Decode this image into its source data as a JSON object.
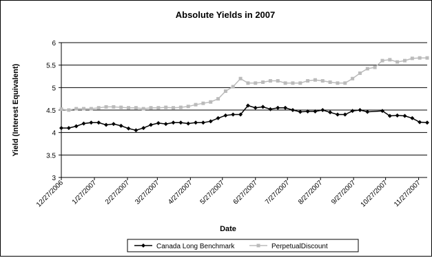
{
  "chart_data": {
    "type": "line",
    "title": "Absolute Yields in 2007",
    "xlabel": "Date",
    "ylabel": "Yield (Interest Equivalent)",
    "ylim": [
      3,
      6
    ],
    "yticks": [
      3,
      3.5,
      4,
      4.5,
      5,
      5.5,
      6
    ],
    "ytick_labels": [
      "3",
      "3.5",
      "4",
      "4.5",
      "5",
      "5.5",
      "6"
    ],
    "xlim": [
      "2006-12-27",
      "2007-12-05"
    ],
    "xtick_labels": [
      "12/27/2006",
      "1/27/2007",
      "2/27/2007",
      "3/27/2007",
      "4/27/2007",
      "5/27/2007",
      "6/27/2007",
      "7/27/2007",
      "8/27/2007",
      "9/27/2007",
      "10/27/2007",
      "11/27/2007"
    ],
    "xtick_dates": [
      "2006-12-27",
      "2007-01-27",
      "2007-02-27",
      "2007-03-27",
      "2007-04-27",
      "2007-05-27",
      "2007-06-27",
      "2007-07-27",
      "2007-08-27",
      "2007-09-27",
      "2007-10-27",
      "2007-11-27"
    ],
    "grid": "horizontal",
    "legend": "bottom",
    "series": [
      {
        "name": "Canada Long Benchmark",
        "color": "#000000",
        "marker": "diamond",
        "points": [
          [
            "2006-12-27",
            4.1
          ],
          [
            "2007-01-03",
            4.1
          ],
          [
            "2007-01-10",
            4.14
          ],
          [
            "2007-01-17",
            4.2
          ],
          [
            "2007-01-24",
            4.22
          ],
          [
            "2007-01-31",
            4.22
          ],
          [
            "2007-02-07",
            4.17
          ],
          [
            "2007-02-14",
            4.19
          ],
          [
            "2007-02-21",
            4.15
          ],
          [
            "2007-02-28",
            4.09
          ],
          [
            "2007-03-07",
            4.05
          ],
          [
            "2007-03-14",
            4.1
          ],
          [
            "2007-03-21",
            4.17
          ],
          [
            "2007-03-28",
            4.21
          ],
          [
            "2007-04-04",
            4.19
          ],
          [
            "2007-04-11",
            4.22
          ],
          [
            "2007-04-18",
            4.22
          ],
          [
            "2007-04-25",
            4.2
          ],
          [
            "2007-05-02",
            4.22
          ],
          [
            "2007-05-09",
            4.22
          ],
          [
            "2007-05-16",
            4.25
          ],
          [
            "2007-05-23",
            4.32
          ],
          [
            "2007-05-30",
            4.38
          ],
          [
            "2007-06-06",
            4.4
          ],
          [
            "2007-06-13",
            4.4
          ],
          [
            "2007-06-20",
            4.6
          ],
          [
            "2007-06-27",
            4.55
          ],
          [
            "2007-07-04",
            4.57
          ],
          [
            "2007-07-11",
            4.52
          ],
          [
            "2007-07-18",
            4.55
          ],
          [
            "2007-07-25",
            4.55
          ],
          [
            "2007-08-01",
            4.5
          ],
          [
            "2007-08-08",
            4.46
          ],
          [
            "2007-08-15",
            4.47
          ],
          [
            "2007-08-22",
            4.47
          ],
          [
            "2007-08-29",
            4.5
          ],
          [
            "2007-09-05",
            4.45
          ],
          [
            "2007-09-12",
            4.4
          ],
          [
            "2007-09-19",
            4.4
          ],
          [
            "2007-09-26",
            4.48
          ],
          [
            "2007-10-03",
            4.5
          ],
          [
            "2007-10-10",
            4.46
          ],
          [
            "2007-10-24",
            4.48
          ],
          [
            "2007-10-31",
            4.37
          ],
          [
            "2007-11-07",
            4.38
          ],
          [
            "2007-11-14",
            4.37
          ],
          [
            "2007-11-21",
            4.32
          ],
          [
            "2007-11-28",
            4.23
          ],
          [
            "2007-12-05",
            4.22
          ]
        ]
      },
      {
        "name": "PerpetualDiscount",
        "color": "#bbbbbb",
        "marker": "square",
        "points": [
          [
            "2006-12-27",
            4.52
          ],
          [
            "2007-01-03",
            4.5
          ],
          [
            "2007-01-10",
            4.53
          ],
          [
            "2007-01-17",
            4.53
          ],
          [
            "2007-01-24",
            4.53
          ],
          [
            "2007-01-31",
            4.55
          ],
          [
            "2007-02-07",
            4.57
          ],
          [
            "2007-02-14",
            4.57
          ],
          [
            "2007-02-21",
            4.56
          ],
          [
            "2007-02-28",
            4.55
          ],
          [
            "2007-03-07",
            4.55
          ],
          [
            "2007-03-14",
            4.53
          ],
          [
            "2007-03-21",
            4.55
          ],
          [
            "2007-03-28",
            4.55
          ],
          [
            "2007-04-04",
            4.56
          ],
          [
            "2007-04-11",
            4.55
          ],
          [
            "2007-04-18",
            4.56
          ],
          [
            "2007-04-25",
            4.58
          ],
          [
            "2007-05-02",
            4.62
          ],
          [
            "2007-05-09",
            4.65
          ],
          [
            "2007-05-16",
            4.68
          ],
          [
            "2007-05-23",
            4.75
          ],
          [
            "2007-05-30",
            4.92
          ],
          [
            "2007-06-06",
            5.02
          ],
          [
            "2007-06-13",
            5.2
          ],
          [
            "2007-06-20",
            5.1
          ],
          [
            "2007-06-27",
            5.1
          ],
          [
            "2007-07-04",
            5.12
          ],
          [
            "2007-07-11",
            5.15
          ],
          [
            "2007-07-18",
            5.15
          ],
          [
            "2007-07-25",
            5.1
          ],
          [
            "2007-08-01",
            5.1
          ],
          [
            "2007-08-08",
            5.1
          ],
          [
            "2007-08-15",
            5.15
          ],
          [
            "2007-08-22",
            5.17
          ],
          [
            "2007-08-29",
            5.15
          ],
          [
            "2007-09-05",
            5.12
          ],
          [
            "2007-09-12",
            5.1
          ],
          [
            "2007-09-19",
            5.1
          ],
          [
            "2007-09-26",
            5.2
          ],
          [
            "2007-10-03",
            5.32
          ],
          [
            "2007-10-10",
            5.42
          ],
          [
            "2007-10-17",
            5.45
          ],
          [
            "2007-10-24",
            5.6
          ],
          [
            "2007-10-31",
            5.62
          ],
          [
            "2007-11-07",
            5.57
          ],
          [
            "2007-11-14",
            5.6
          ],
          [
            "2007-11-21",
            5.65
          ],
          [
            "2007-11-28",
            5.66
          ],
          [
            "2007-12-05",
            5.66
          ]
        ]
      }
    ]
  }
}
